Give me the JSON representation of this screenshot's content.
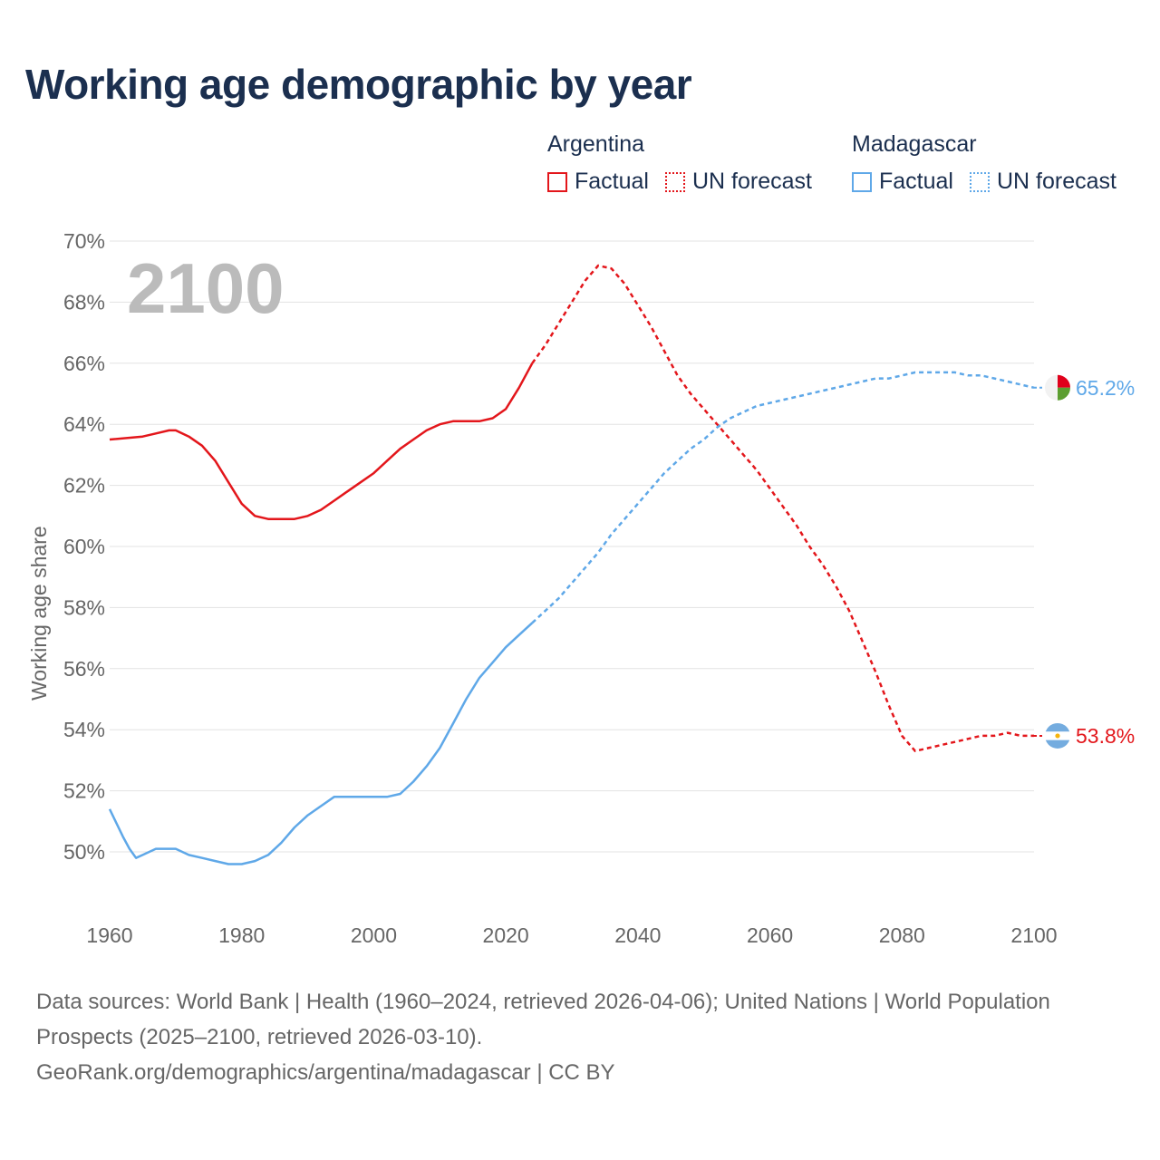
{
  "chart_data": {
    "type": "line",
    "title": "Working age demographic by year",
    "xlabel": "",
    "ylabel": "Working age share",
    "xlim": [
      1960,
      2100
    ],
    "ylim": [
      48,
      70
    ],
    "y_ticks": [
      50,
      52,
      54,
      56,
      58,
      60,
      62,
      64,
      66,
      68,
      70
    ],
    "y_tick_labels": [
      "50%",
      "52%",
      "54%",
      "56%",
      "58%",
      "60%",
      "62%",
      "64%",
      "66%",
      "68%",
      "70%"
    ],
    "x_ticks": [
      1960,
      1980,
      2000,
      2020,
      2040,
      2060,
      2080,
      2100
    ],
    "x_tick_labels": [
      "1960",
      "1980",
      "2000",
      "2020",
      "2040",
      "2060",
      "2080",
      "2100"
    ],
    "year_overlay": "2100",
    "legend": {
      "groups": [
        {
          "name": "Argentina",
          "factual_label": "Factual",
          "forecast_label": "UN forecast",
          "color": "#e3161b"
        },
        {
          "name": "Madagascar",
          "factual_label": "Factual",
          "forecast_label": "UN forecast",
          "color": "#5fa8e8"
        }
      ]
    },
    "series": [
      {
        "name": "Argentina",
        "color": "#e3161b",
        "end_label": "53.8%",
        "factual": {
          "x": [
            1960,
            1965,
            1967,
            1969,
            1970,
            1972,
            1974,
            1976,
            1978,
            1980,
            1982,
            1984,
            1986,
            1988,
            1990,
            1992,
            1994,
            1996,
            1998,
            2000,
            2002,
            2004,
            2006,
            2008,
            2010,
            2012,
            2014,
            2016,
            2018,
            2020,
            2022,
            2024
          ],
          "y": [
            63.5,
            63.6,
            63.7,
            63.8,
            63.8,
            63.6,
            63.3,
            62.8,
            62.1,
            61.4,
            61.0,
            60.9,
            60.9,
            60.9,
            61.0,
            61.2,
            61.5,
            61.8,
            62.1,
            62.4,
            62.8,
            63.2,
            63.5,
            63.8,
            64.0,
            64.1,
            64.1,
            64.1,
            64.2,
            64.5,
            65.2,
            66.0
          ]
        },
        "forecast": {
          "x": [
            2024,
            2026,
            2028,
            2030,
            2032,
            2034,
            2036,
            2038,
            2040,
            2042,
            2044,
            2046,
            2048,
            2050,
            2052,
            2054,
            2056,
            2058,
            2060,
            2062,
            2064,
            2066,
            2068,
            2070,
            2072,
            2074,
            2076,
            2078,
            2080,
            2082,
            2084,
            2086,
            2088,
            2090,
            2092,
            2094,
            2096,
            2098,
            2100
          ],
          "y": [
            66.0,
            66.6,
            67.3,
            68.0,
            68.7,
            69.2,
            69.1,
            68.6,
            67.9,
            67.2,
            66.4,
            65.6,
            65.0,
            64.5,
            64.0,
            63.5,
            63.0,
            62.5,
            61.9,
            61.3,
            60.7,
            60.0,
            59.4,
            58.7,
            57.9,
            56.9,
            55.9,
            54.8,
            53.8,
            53.3,
            53.4,
            53.5,
            53.6,
            53.7,
            53.8,
            53.8,
            53.9,
            53.8,
            53.8
          ]
        }
      },
      {
        "name": "Madagascar",
        "color": "#5fa8e8",
        "end_label": "65.2%",
        "factual": {
          "x": [
            1960,
            1962,
            1963,
            1964,
            1965,
            1967,
            1970,
            1972,
            1974,
            1976,
            1978,
            1980,
            1982,
            1984,
            1986,
            1988,
            1990,
            1992,
            1994,
            1996,
            1998,
            2000,
            2002,
            2004,
            2006,
            2008,
            2010,
            2012,
            2014,
            2016,
            2018,
            2020,
            2022,
            2024
          ],
          "y": [
            51.4,
            50.5,
            50.1,
            49.8,
            49.9,
            50.1,
            50.1,
            49.9,
            49.8,
            49.7,
            49.6,
            49.6,
            49.7,
            49.9,
            50.3,
            50.8,
            51.2,
            51.5,
            51.8,
            51.8,
            51.8,
            51.8,
            51.8,
            51.9,
            52.3,
            52.8,
            53.4,
            54.2,
            55.0,
            55.7,
            56.2,
            56.7,
            57.1,
            57.5
          ]
        },
        "forecast": {
          "x": [
            2024,
            2026,
            2028,
            2030,
            2032,
            2034,
            2036,
            2038,
            2040,
            2042,
            2044,
            2046,
            2048,
            2050,
            2052,
            2054,
            2056,
            2058,
            2060,
            2062,
            2064,
            2066,
            2068,
            2070,
            2072,
            2074,
            2076,
            2078,
            2080,
            2082,
            2084,
            2086,
            2088,
            2090,
            2092,
            2094,
            2096,
            2098,
            2100
          ],
          "y": [
            57.5,
            57.9,
            58.3,
            58.8,
            59.3,
            59.8,
            60.4,
            60.9,
            61.4,
            61.9,
            62.4,
            62.8,
            63.2,
            63.5,
            63.9,
            64.2,
            64.4,
            64.6,
            64.7,
            64.8,
            64.9,
            65.0,
            65.1,
            65.2,
            65.3,
            65.4,
            65.5,
            65.5,
            65.6,
            65.7,
            65.7,
            65.7,
            65.7,
            65.6,
            65.6,
            65.5,
            65.4,
            65.3,
            65.2
          ]
        }
      }
    ]
  },
  "footer": {
    "sources": "Data sources: World Bank | Health (1960–2024, retrieved 2026-04-06); United Nations | World Population Prospects (2025–2100, retrieved 2026-03-10).",
    "link": "GeoRank.org/demographics/argentina/madagascar | CC BY"
  }
}
